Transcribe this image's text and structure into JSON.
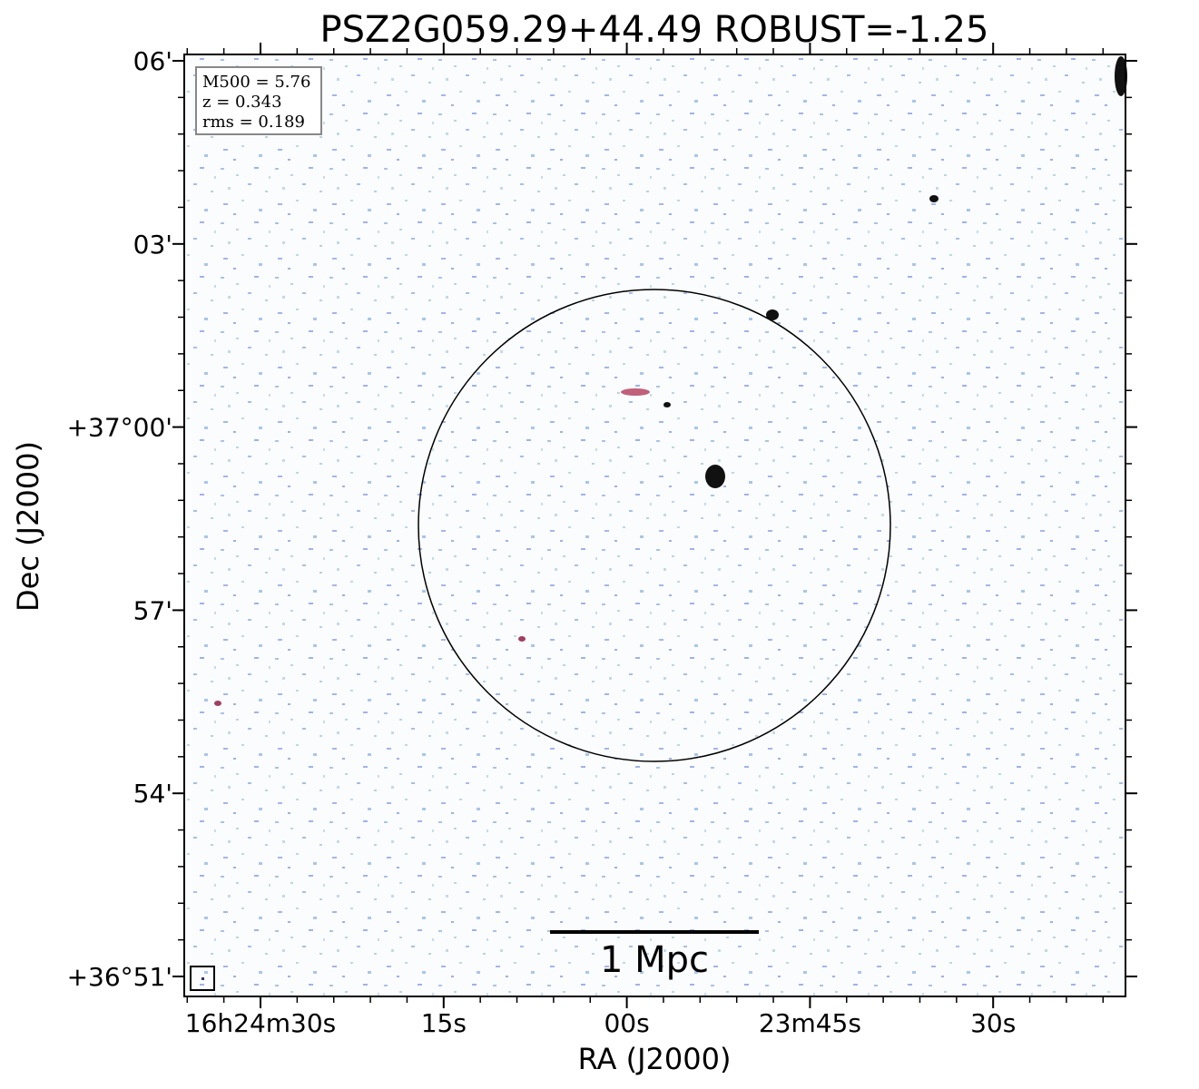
{
  "plot": {
    "title": "PSZ2G059.29+44.49 ROBUST=-1.25",
    "xlabel": "RA (J2000)",
    "ylabel": "Dec (J2000)",
    "xtick_labels": [
      "16h24m30s",
      "15s",
      "00s",
      "23m45s",
      "30s"
    ],
    "ytick_labels": [
      "06'",
      "03'",
      "+37°00'",
      "57'",
      "54'",
      "+36°51'"
    ],
    "info": [
      "M500 = 5.76",
      "z = 0.343",
      "rms = 0.189"
    ],
    "scalebar": "1 Mpc"
  }
}
